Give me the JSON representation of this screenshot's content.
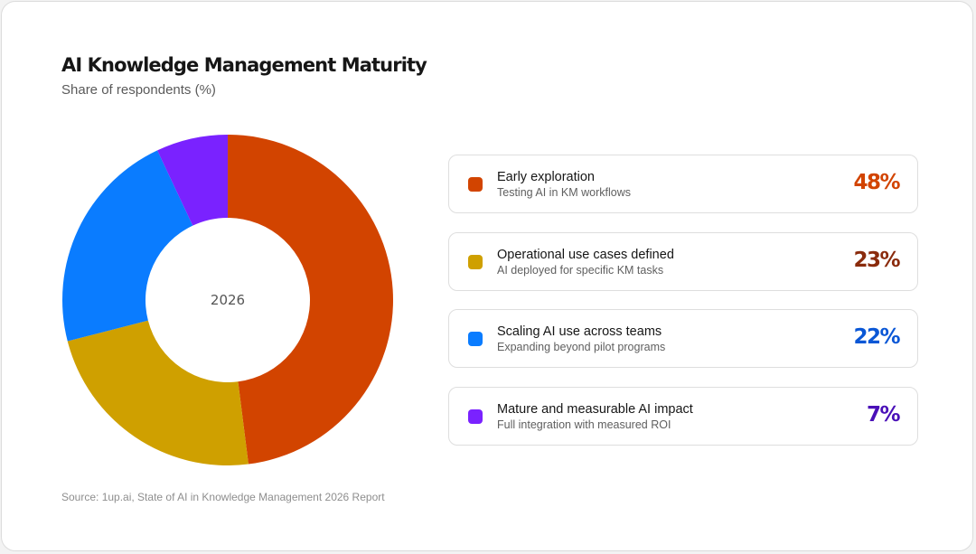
{
  "chart_data": {
    "type": "pie",
    "title": "AI Knowledge Management Maturity",
    "subtitle": "Share of respondents (%)",
    "center_label": "2026",
    "unit": "%",
    "categories": [
      "Early exploration",
      "Operational use cases defined",
      "Scaling AI use across teams",
      "Mature and measurable AI impact"
    ],
    "values": [
      48,
      23,
      22,
      7
    ],
    "colors": [
      "#d24400",
      "#cfa000",
      "#0a7cff",
      "#7a22ff"
    ],
    "legend_placement": "right",
    "donut": true
  },
  "legend": {
    "items": [
      {
        "label": "Early exploration",
        "description": "Testing AI in KM workflows",
        "value_text": "48%",
        "color": "#d24400",
        "value_color": "#d24400"
      },
      {
        "label": "Operational use cases defined",
        "description": "AI deployed for specific KM tasks",
        "value_text": "23%",
        "color": "#cfa000",
        "value_color": "#8a2b0c"
      },
      {
        "label": "Scaling AI use across teams",
        "description": "Expanding beyond pilot programs",
        "value_text": "22%",
        "color": "#0a7cff",
        "value_color": "#0a57d6"
      },
      {
        "label": "Mature and measurable AI impact",
        "description": "Full integration with measured ROI",
        "value_text": "7%",
        "color": "#7a22ff",
        "value_color": "#4a10b8"
      }
    ]
  },
  "source": "Source: 1up.ai, State of AI in Knowledge Management 2026 Report"
}
